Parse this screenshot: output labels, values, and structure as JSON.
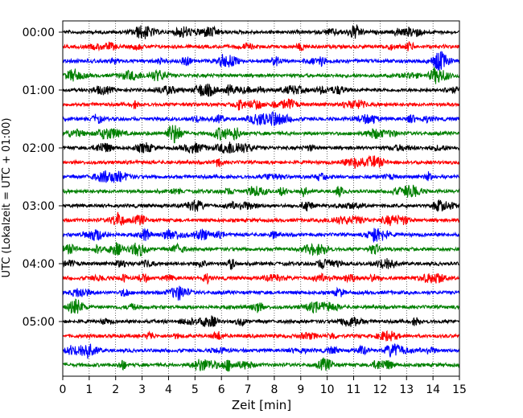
{
  "chart_data": {
    "type": "line",
    "description_kind": "helicorder",
    "xlabel": "Zeit  [min]",
    "ylabel": "UTC (Lokalzeit = UTC + 01:00)",
    "xlim": [
      0,
      15
    ],
    "x_ticks": [
      "0",
      "1",
      "2",
      "3",
      "4",
      "5",
      "6",
      "7",
      "8",
      "9",
      "10",
      "11",
      "12",
      "13",
      "14",
      "15"
    ],
    "y_ticks": [
      "00:00",
      "01:00",
      "02:00",
      "03:00",
      "04:00",
      "05:00"
    ],
    "traces_per_hour": 4,
    "trace_minutes": 15,
    "grid": "vertical dotted at each minute",
    "trace_colors": [
      "#000000",
      "#ff0000",
      "#0000ff",
      "#008000"
    ],
    "series": [
      {
        "start": "00:00",
        "color": "#000000"
      },
      {
        "start": "00:15",
        "color": "#ff0000"
      },
      {
        "start": "00:30",
        "color": "#0000ff"
      },
      {
        "start": "00:45",
        "color": "#008000"
      },
      {
        "start": "01:00",
        "color": "#000000"
      },
      {
        "start": "01:15",
        "color": "#ff0000"
      },
      {
        "start": "01:30",
        "color": "#0000ff"
      },
      {
        "start": "01:45",
        "color": "#008000"
      },
      {
        "start": "02:00",
        "color": "#000000"
      },
      {
        "start": "02:15",
        "color": "#ff0000"
      },
      {
        "start": "02:30",
        "color": "#0000ff"
      },
      {
        "start": "02:45",
        "color": "#008000"
      },
      {
        "start": "03:00",
        "color": "#000000"
      },
      {
        "start": "03:15",
        "color": "#ff0000"
      },
      {
        "start": "03:30",
        "color": "#0000ff"
      },
      {
        "start": "03:45",
        "color": "#008000"
      },
      {
        "start": "04:00",
        "color": "#000000"
      },
      {
        "start": "04:15",
        "color": "#ff0000"
      },
      {
        "start": "04:30",
        "color": "#0000ff"
      },
      {
        "start": "04:45",
        "color": "#008000"
      },
      {
        "start": "05:00",
        "color": "#000000"
      },
      {
        "start": "05:15",
        "color": "#ff0000"
      },
      {
        "start": "05:30",
        "color": "#0000ff"
      },
      {
        "start": "05:45",
        "color": "#008000"
      }
    ]
  }
}
